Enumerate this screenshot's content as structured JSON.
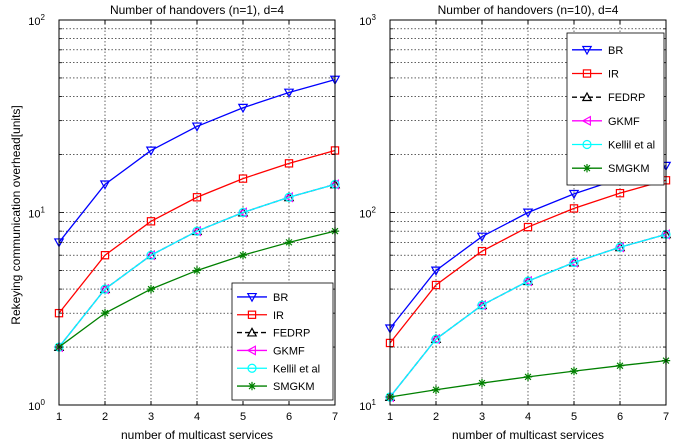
{
  "figure": {
    "ylabel": "Rekeying communication overhead[units]"
  },
  "chart_data": [
    {
      "type": "line",
      "title": "Number of handovers (n=1), d=4",
      "xlabel": "number of multicast services",
      "ylabel": "Rekeying communication overhead[units]",
      "yscale": "log",
      "xlim": [
        1,
        7
      ],
      "ylim": [
        1,
        100
      ],
      "grid": true,
      "legend_position": "bottom-right",
      "x": [
        1,
        2,
        3,
        4,
        5,
        6,
        7
      ],
      "x_tick_labels": [
        "1",
        "2",
        "3",
        "4",
        "5",
        "6",
        "7"
      ],
      "y_tick_labels": [
        {
          "value": 1,
          "base": "10",
          "exp": "0"
        },
        {
          "value": 10,
          "base": "10",
          "exp": "1"
        },
        {
          "value": 100,
          "base": "10",
          "exp": "2"
        }
      ],
      "series": [
        {
          "name": "BR",
          "color": "#0000ff",
          "marker": "triangle-down",
          "dash": "solid",
          "values": [
            7,
            14,
            21,
            28,
            35,
            42,
            49
          ]
        },
        {
          "name": "IR",
          "color": "#ff0000",
          "marker": "square",
          "dash": "solid",
          "values": [
            3,
            6,
            9,
            12,
            15,
            18,
            21
          ]
        },
        {
          "name": "FEDRP",
          "color": "#000000",
          "marker": "triangle-up",
          "dash": "dashed",
          "values": [
            2,
            4,
            6,
            8,
            10,
            12,
            14
          ]
        },
        {
          "name": "GKMF",
          "color": "#ff00ff",
          "marker": "triangle-left",
          "dash": "solid",
          "values": [
            2,
            4,
            6,
            8,
            10,
            12,
            14
          ]
        },
        {
          "name": "Kellil et al",
          "color": "#00ffff",
          "marker": "circle",
          "dash": "solid",
          "values": [
            2,
            4,
            6,
            8,
            10,
            12,
            14
          ]
        },
        {
          "name": "SMGKM",
          "color": "#008000",
          "marker": "star",
          "dash": "solid",
          "values": [
            2,
            3,
            4,
            5,
            6,
            7,
            8
          ]
        }
      ]
    },
    {
      "type": "line",
      "title": "Number of handovers (n=10), d=4",
      "xlabel": "number of multicast services",
      "ylabel": "",
      "yscale": "log",
      "xlim": [
        1,
        7
      ],
      "ylim": [
        10,
        1000
      ],
      "grid": true,
      "legend_position": "top-right",
      "x": [
        1,
        2,
        3,
        4,
        5,
        6,
        7
      ],
      "x_tick_labels": [
        "1",
        "2",
        "3",
        "4",
        "5",
        "6",
        "7"
      ],
      "y_tick_labels": [
        {
          "value": 10,
          "base": "10",
          "exp": "1"
        },
        {
          "value": 100,
          "base": "10",
          "exp": "2"
        },
        {
          "value": 1000,
          "base": "10",
          "exp": "3"
        }
      ],
      "series": [
        {
          "name": "BR",
          "color": "#0000ff",
          "marker": "triangle-down",
          "dash": "solid",
          "values": [
            25,
            50,
            75,
            100,
            125,
            150,
            175
          ]
        },
        {
          "name": "IR",
          "color": "#ff0000",
          "marker": "square",
          "dash": "solid",
          "values": [
            21,
            42,
            63,
            84,
            105,
            126,
            147
          ]
        },
        {
          "name": "FEDRP",
          "color": "#000000",
          "marker": "triangle-up",
          "dash": "dashed",
          "values": [
            11,
            22,
            33,
            44,
            55,
            66,
            77
          ]
        },
        {
          "name": "GKMF",
          "color": "#ff00ff",
          "marker": "triangle-left",
          "dash": "solid",
          "values": [
            11,
            22,
            33,
            44,
            55,
            66,
            77
          ]
        },
        {
          "name": "Kellil et al",
          "color": "#00ffff",
          "marker": "circle",
          "dash": "solid",
          "values": [
            11,
            22,
            33,
            44,
            55,
            66,
            77
          ]
        },
        {
          "name": "SMGKM",
          "color": "#008000",
          "marker": "star",
          "dash": "solid",
          "values": [
            11,
            12,
            13,
            14,
            15,
            16,
            17
          ]
        }
      ]
    }
  ]
}
